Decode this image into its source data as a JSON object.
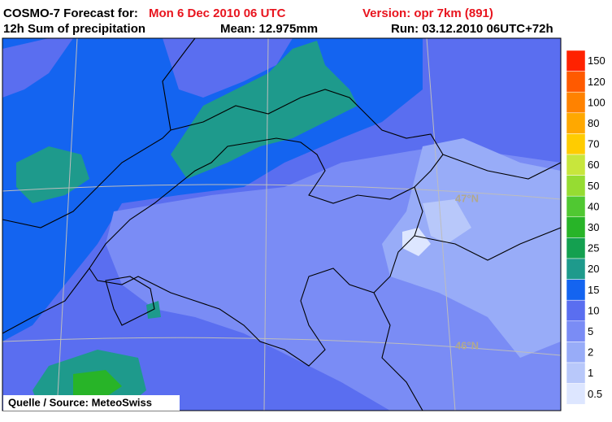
{
  "header": {
    "title": "COSMO-7 Forecast for:",
    "forecast_time": "Mon 6 Dec 2010 06 UTC",
    "version": "Version: opr 7km (891)",
    "product": "12h Sum of precipitation",
    "mean": "Mean: 12.975mm",
    "run": "Run: 03.12.2010 06UTC+72h"
  },
  "map": {
    "graticule_labels": [
      "47°N",
      "46°N"
    ],
    "source": "Quelle / Source: MeteoSwiss"
  },
  "legend": {
    "items": [
      {
        "value": 150,
        "color": "#ff2200"
      },
      {
        "value": 120,
        "color": "#ff5a00"
      },
      {
        "value": 100,
        "color": "#ff8200"
      },
      {
        "value": 80,
        "color": "#ffa800"
      },
      {
        "value": 70,
        "color": "#ffcc00"
      },
      {
        "value": 60,
        "color": "#c8e63c"
      },
      {
        "value": 50,
        "color": "#96dc32"
      },
      {
        "value": 40,
        "color": "#50c832"
      },
      {
        "value": 30,
        "color": "#28b428"
      },
      {
        "value": 25,
        "color": "#14a050"
      },
      {
        "value": 20,
        "color": "#1e9a8c"
      },
      {
        "value": 15,
        "color": "#1464f0"
      },
      {
        "value": 10,
        "color": "#5a6ef0"
      },
      {
        "value": 5,
        "color": "#7a8cf5"
      },
      {
        "value": 2,
        "color": "#98acf8"
      },
      {
        "value": 1,
        "color": "#b8c8fa"
      },
      {
        "value": 0.5,
        "color": "#dde6ff"
      }
    ]
  }
}
